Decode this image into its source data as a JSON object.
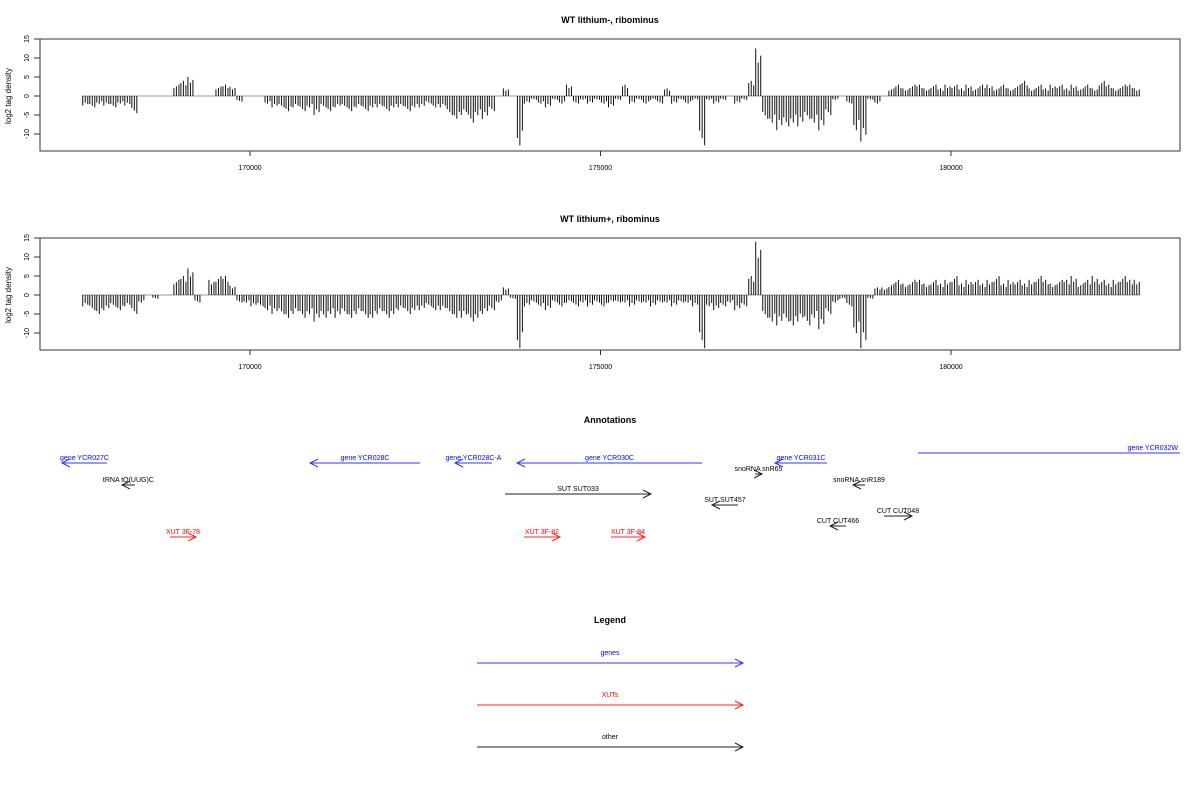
{
  "chart_data": [
    {
      "type": "bar",
      "title": "WT lithium-, ribominus",
      "ylabel": "log2 tag density",
      "xlabel": "",
      "xlim": [
        167000,
        183270
      ],
      "ylim": [
        -15,
        15
      ],
      "yticks": [
        "15",
        "10",
        "5",
        "0",
        "-5",
        "-10"
      ],
      "ytick_values": [
        15,
        10,
        5,
        0,
        -5,
        -10
      ],
      "xticks": [
        "170000",
        "175000",
        "180000"
      ],
      "xtick_values": [
        170000,
        175000,
        180000
      ],
      "bin_start": 167600,
      "bin_size": 100,
      "values": [
        -2.5,
        -3,
        -2,
        -2.5,
        -3,
        -2,
        -2.5,
        -4.5,
        0,
        0,
        0,
        0,
        0,
        3,
        4,
        5,
        0,
        0,
        0,
        2.5,
        3,
        2.5,
        -1.5,
        0,
        0,
        0,
        -2,
        -3,
        -3,
        -4,
        -3,
        -4,
        -3,
        -5,
        -3,
        -4,
        -3,
        -3,
        -4,
        -3,
        -4,
        -3,
        -3,
        -4,
        -3,
        -3,
        -4,
        -3,
        -3,
        -2,
        -3,
        -3,
        -5,
        -6,
        -5,
        -7,
        -5,
        -6,
        -4,
        0,
        2,
        0,
        -13,
        -2,
        -1,
        -2,
        -3,
        -1,
        -2,
        3,
        -2,
        -1,
        -2,
        -1,
        -2,
        -3,
        -1,
        3,
        -2,
        -1,
        -2,
        -1,
        -2,
        2,
        -2,
        -1,
        -2,
        -1,
        -13,
        -1,
        -2,
        -1,
        0,
        -2,
        -1,
        4,
        12.5,
        -6,
        -7,
        -9,
        -8,
        -7,
        -8,
        -6,
        -7,
        -9,
        -5,
        -1,
        0,
        -2,
        -9,
        -12,
        -1,
        -2,
        0,
        2,
        3,
        2,
        3,
        3,
        2,
        3,
        2,
        3,
        3,
        2,
        3,
        2,
        3,
        3,
        2,
        3,
        2,
        3,
        4,
        2,
        3,
        2,
        3,
        3,
        2,
        3,
        2,
        3,
        2,
        4,
        3,
        2,
        3,
        3,
        2
      ]
    },
    {
      "type": "bar",
      "title": "WT lithium+, ribominus",
      "ylabel": "log2 tag density",
      "xlabel": "",
      "xlim": [
        167000,
        183270
      ],
      "ylim": [
        -15,
        15
      ],
      "yticks": [
        "15",
        "10",
        "5",
        "0",
        "-5",
        "-10"
      ],
      "ytick_values": [
        15,
        10,
        5,
        0,
        -5,
        -10
      ],
      "xticks": [
        "170000",
        "175000",
        "180000"
      ],
      "xtick_values": [
        170000,
        175000,
        180000
      ],
      "bin_start": 167600,
      "bin_size": 100,
      "values": [
        -3,
        -4,
        -5,
        -4,
        -3,
        -4,
        -3,
        -5,
        -2,
        0,
        -1,
        0,
        0,
        4,
        5,
        7,
        -2,
        0,
        4,
        5,
        5,
        2.5,
        -2,
        -2,
        -3,
        -3,
        -4,
        -5,
        -5,
        -6,
        -5,
        -6,
        -5,
        -7,
        -6,
        -5,
        -6,
        -5,
        -6,
        -5,
        -6,
        -6,
        -5,
        -6,
        -5,
        -4,
        -5,
        -4,
        -4,
        -3,
        -4,
        -4,
        -5,
        -6,
        -6,
        -7,
        -6,
        -5,
        -4,
        -2,
        2,
        -1,
        -14,
        -3,
        -2,
        -3,
        -4,
        -2,
        -3,
        -2,
        -3,
        -2,
        -3,
        -2,
        -3,
        -2,
        -2,
        -2,
        -3,
        -2,
        -2,
        -3,
        -2,
        -2,
        -3,
        -2,
        -2,
        -3,
        -14,
        -3,
        -4,
        -3,
        -2,
        -4,
        -3,
        5,
        14,
        -6,
        -7,
        -8,
        -7,
        -8,
        -7,
        -8,
        -6,
        -9,
        -5,
        -2,
        -1,
        -3,
        -10,
        -14,
        -1,
        2,
        2,
        3,
        4,
        3,
        4,
        4,
        3,
        4,
        3,
        4,
        5,
        3,
        4,
        4,
        3,
        4,
        5,
        3,
        4,
        4,
        3,
        4,
        5,
        4,
        3,
        4,
        4,
        5,
        3,
        4,
        5,
        4,
        3,
        4,
        5,
        4,
        4
      ]
    }
  ],
  "annotations": {
    "title": "Annotations",
    "features": [
      {
        "label": "gene YCR027C",
        "type": "genes",
        "start": 167318,
        "end": 167960,
        "strand": "-"
      },
      {
        "label": "tRNA tQ(UUG)C",
        "type": "other",
        "start": 168174,
        "end": 168357,
        "strand": "-"
      },
      {
        "label": "gene YCR028C",
        "type": "genes",
        "start": 170856,
        "end": 172425,
        "strand": "-"
      },
      {
        "label": "gene YCR028C-A",
        "type": "genes",
        "start": 172924,
        "end": 173452,
        "strand": "-"
      },
      {
        "label": "gene YCR030C",
        "type": "genes",
        "start": 173809,
        "end": 176448,
        "strand": "-"
      },
      {
        "label": "snoRNA snR65",
        "type": "other",
        "start": 177204,
        "end": 177304,
        "strand": "+"
      },
      {
        "label": "gene YCR031C",
        "type": "genes",
        "start": 177489,
        "end": 178231,
        "strand": "-"
      },
      {
        "label": "snoRNA snR189",
        "type": "other",
        "start": 178602,
        "end": 178773,
        "strand": "-"
      },
      {
        "label": "gene YCR032W",
        "type": "genes",
        "start": 179529,
        "end": 183300,
        "strand": "+"
      },
      {
        "label": "SUT SUT033",
        "type": "other",
        "start": 173638,
        "end": 175720,
        "strand": "+"
      },
      {
        "label": "SUT SUT457",
        "type": "other",
        "start": 176590,
        "end": 176961,
        "strand": "-"
      },
      {
        "label": "CUT CUT466",
        "type": "other",
        "start": 178274,
        "end": 178502,
        "strand": "-"
      },
      {
        "label": "CUT CUT048",
        "type": "other",
        "start": 179044,
        "end": 179443,
        "strand": "+"
      },
      {
        "label": "XUT 3F-78",
        "type": "XUTs",
        "start": 168859,
        "end": 169230,
        "strand": "+"
      },
      {
        "label": "XUT 3F-82",
        "type": "XUTs",
        "start": 173909,
        "end": 174422,
        "strand": "+"
      },
      {
        "label": "XUT 3F-84",
        "type": "XUTs",
        "start": 175150,
        "end": 175635,
        "strand": "+"
      }
    ]
  },
  "legend": {
    "title": "Legend",
    "items": [
      {
        "label": "genes",
        "type": "genes"
      },
      {
        "label": "XUTs",
        "type": "XUTs"
      },
      {
        "label": "other",
        "type": "other"
      }
    ]
  },
  "colors": {
    "genes": "#3333ff",
    "genes_text": "#0000ff",
    "XUTs": "#ff2020",
    "XUTs_text": "#ff0000",
    "other": "#222222",
    "other_text": "#000000",
    "bar": "#111111",
    "zero": "#999999"
  }
}
